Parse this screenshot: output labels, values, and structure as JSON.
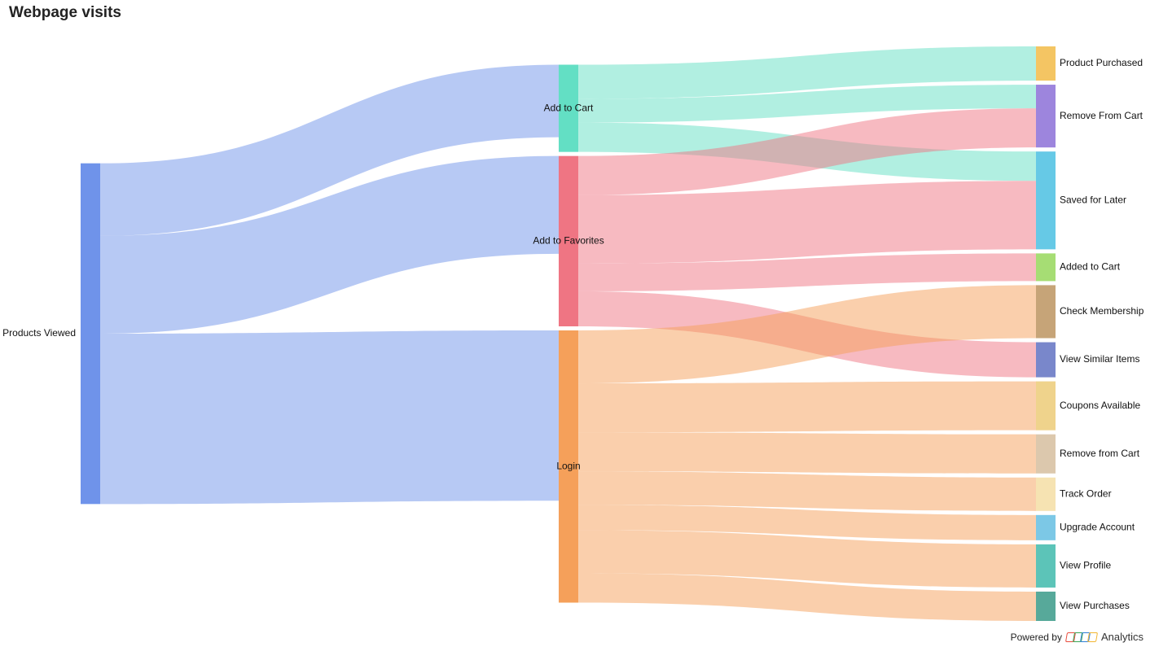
{
  "title": "Webpage visits",
  "footer": {
    "powered_by": "Powered by",
    "brand": "Analytics"
  },
  "chart_data": {
    "type": "sankey",
    "nodes": [
      {
        "id": "pv",
        "label": "Products Viewed",
        "column": 0,
        "color": "#6f93ea"
      },
      {
        "id": "atc",
        "label": "Add to Cart",
        "column": 1,
        "color": "#63dfc4"
      },
      {
        "id": "atf",
        "label": "Add to Favorites",
        "column": 1,
        "color": "#ef7583"
      },
      {
        "id": "login",
        "label": "Login",
        "column": 1,
        "color": "#f5a05a"
      },
      {
        "id": "pp",
        "label": "Product Purchased",
        "column": 2,
        "color": "#f4c563"
      },
      {
        "id": "rfc",
        "label": "Remove From Cart",
        "column": 2,
        "color": "#9d85dd"
      },
      {
        "id": "sfl",
        "label": "Saved for Later",
        "column": 2,
        "color": "#66c9e6"
      },
      {
        "id": "adc",
        "label": "Added to Cart",
        "column": 2,
        "color": "#a6dd74"
      },
      {
        "id": "cm",
        "label": "Check Membership",
        "column": 2,
        "color": "#c6a478"
      },
      {
        "id": "vsi",
        "label": "View Similar Items",
        "column": 2,
        "color": "#7987cb"
      },
      {
        "id": "ca",
        "label": "Coupons Available",
        "column": 2,
        "color": "#efd38c"
      },
      {
        "id": "rfc2",
        "label": "Remove from Cart",
        "column": 2,
        "color": "#dcc8ad"
      },
      {
        "id": "to",
        "label": "Track Order",
        "column": 2,
        "color": "#f6e3b2"
      },
      {
        "id": "ua",
        "label": "Upgrade Account",
        "column": 2,
        "color": "#7cc8e6"
      },
      {
        "id": "vp",
        "label": "View Profile",
        "column": 2,
        "color": "#5cc4b8"
      },
      {
        "id": "vpu",
        "label": "View Purchases",
        "column": 2,
        "color": "#57a99a"
      }
    ],
    "links": [
      {
        "source": "pv",
        "target": "atc",
        "value": 89
      },
      {
        "source": "pv",
        "target": "atf",
        "value": 120
      },
      {
        "source": "pv",
        "target": "login",
        "value": 209
      },
      {
        "source": "atc",
        "target": "pp",
        "value": 42
      },
      {
        "source": "atc",
        "target": "rfc",
        "value": 29
      },
      {
        "source": "atc",
        "target": "sfl",
        "value": 36
      },
      {
        "source": "atf",
        "target": "rfc",
        "value": 48
      },
      {
        "source": "atf",
        "target": "sfl",
        "value": 84
      },
      {
        "source": "atf",
        "target": "adc",
        "value": 34
      },
      {
        "source": "atf",
        "target": "vsi",
        "value": 43
      },
      {
        "source": "login",
        "target": "cm",
        "value": 65
      },
      {
        "source": "login",
        "target": "ca",
        "value": 60
      },
      {
        "source": "login",
        "target": "rfc2",
        "value": 48
      },
      {
        "source": "login",
        "target": "to",
        "value": 41
      },
      {
        "source": "login",
        "target": "ua",
        "value": 31
      },
      {
        "source": "login",
        "target": "vp",
        "value": 53
      },
      {
        "source": "login",
        "target": "vpu",
        "value": 36
      }
    ]
  }
}
